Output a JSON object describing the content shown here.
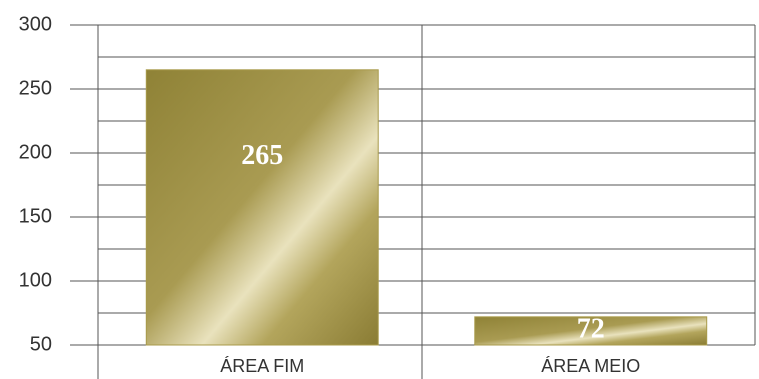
{
  "chart_data": {
    "type": "bar",
    "categories": [
      "ÁREA FIM",
      "ÁREA MEIO"
    ],
    "values": [
      265,
      72
    ],
    "color": "#a89a4a",
    "ylim": [
      50,
      300
    ],
    "yticks": [
      50,
      100,
      150,
      200,
      250,
      300
    ],
    "minor_yticks": [
      75,
      125,
      175,
      225,
      275
    ],
    "grid": true
  }
}
